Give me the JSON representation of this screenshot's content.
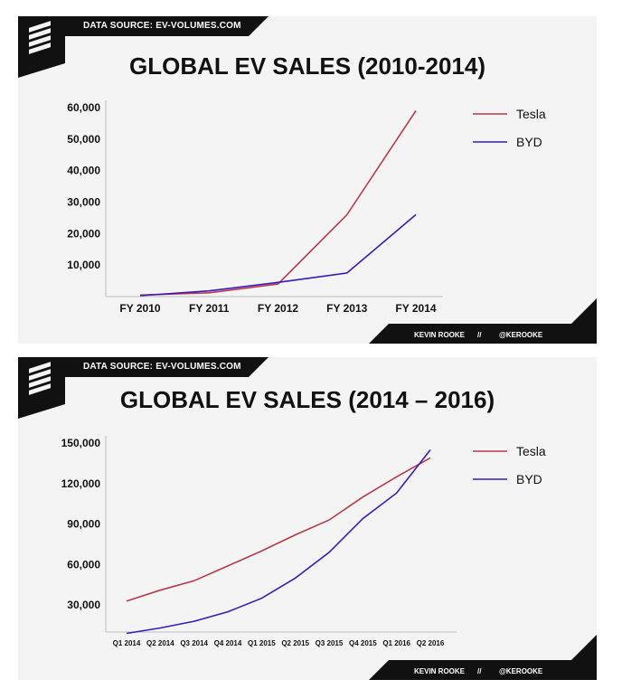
{
  "chart_data": [
    {
      "type": "line",
      "source": "DATA SOURCE: EV-VOLUMES.COM",
      "title": "GLOBAL EV SALES (2010-2014)",
      "categories": [
        "FY 2010",
        "FY 2011",
        "FY 2012",
        "FY 2013",
        "FY 2014"
      ],
      "series": [
        {
          "name": "Tesla",
          "color": "#b83a4a",
          "values": [
            500,
            1200,
            4000,
            26000,
            59000
          ]
        },
        {
          "name": "BYD",
          "color": "#3a1ab8",
          "values": [
            300,
            1800,
            4500,
            7500,
            26000
          ]
        }
      ],
      "ylim": [
        0,
        60000
      ],
      "yticks": [
        10000,
        20000,
        30000,
        40000,
        50000,
        60000
      ],
      "ytick_labels": [
        "10,000",
        "20,000",
        "30,000",
        "40,000",
        "50,000",
        "60,000"
      ],
      "legend": "top-right",
      "footer": {
        "author": "KEVIN ROOKE",
        "sep": "//",
        "handle": "@KEROOKE"
      }
    },
    {
      "type": "line",
      "source": "DATA SOURCE: EV-VOLUMES.COM",
      "title": "GLOBAL EV SALES (2014 – 2016)",
      "categories": [
        "Q1 2014",
        "Q2 2014",
        "Q3 2014",
        "Q4 2014",
        "Q1 2015",
        "Q2 2015",
        "Q3 2015",
        "Q4 2015",
        "Q1 2016",
        "Q2 2016"
      ],
      "series": [
        {
          "name": "Tesla",
          "color": "#b83a4a",
          "values": [
            33000,
            41000,
            48000,
            59000,
            70000,
            82000,
            93000,
            110000,
            125000,
            139000
          ]
        },
        {
          "name": "BYD",
          "color": "#3a1ab8",
          "values": [
            9000,
            13000,
            18000,
            25000,
            35000,
            50000,
            69000,
            94000,
            113000,
            145000
          ]
        }
      ],
      "ylim": [
        10000,
        150000
      ],
      "yticks": [
        30000,
        60000,
        90000,
        120000,
        150000
      ],
      "ytick_labels": [
        "30,000",
        "60,000",
        "90,000",
        "120,000",
        "150,000"
      ],
      "legend": "top-right",
      "footer": {
        "author": "KEVIN ROOKE",
        "sep": "//",
        "handle": "@KEROOKE"
      }
    }
  ]
}
